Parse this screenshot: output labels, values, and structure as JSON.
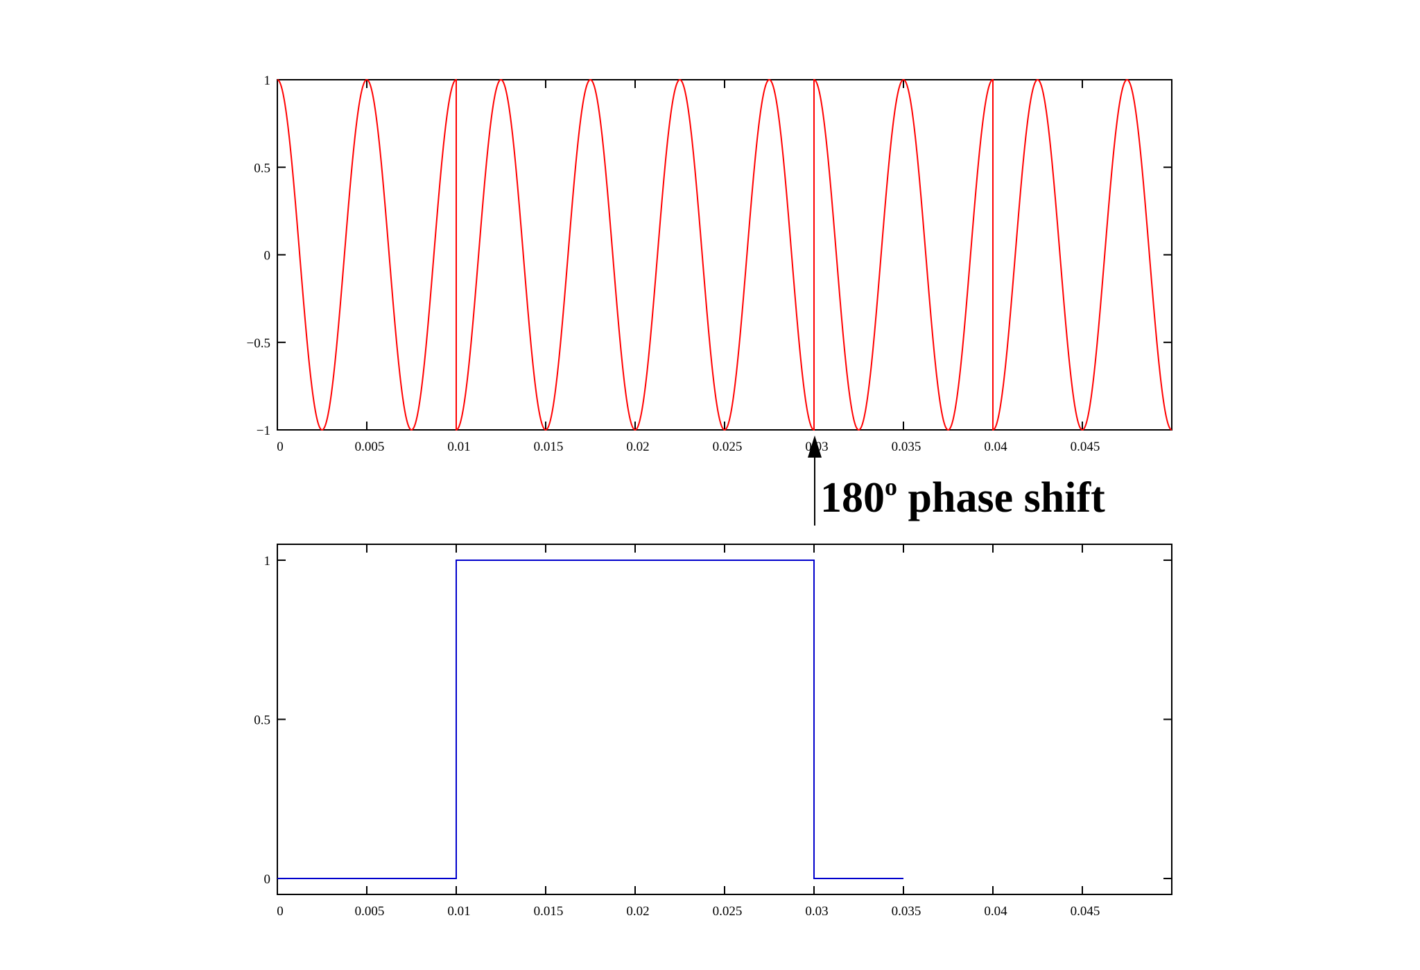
{
  "chart_data": [
    {
      "type": "line",
      "function": "cos(2*pi*200*t + phi(t))",
      "x_range": [
        0,
        0.05
      ],
      "ylim": [
        -1,
        1
      ],
      "color": "#ff0000",
      "x_ticks": [
        0,
        0.005,
        0.01,
        0.015,
        0.02,
        0.025,
        0.03,
        0.035,
        0.04,
        0.045
      ],
      "x_tick_labels": [
        "0",
        "0.005",
        "0.01",
        "0.015",
        "0.02",
        "0.025",
        "0.03",
        "0.035",
        "0.04",
        "0.045"
      ],
      "y_ticks": [
        -1,
        -0.5,
        0,
        0.5,
        1
      ],
      "y_tick_labels": [
        "−1",
        "−0.5",
        "0",
        "0.5",
        "1"
      ],
      "segments": [
        {
          "x_start": 0,
          "x_end": 0.01,
          "phase": "0"
        },
        {
          "x_start": 0.01,
          "x_end": 0.03,
          "phase": "180"
        },
        {
          "x_start": 0.03,
          "x_end": 0.04,
          "phase": "0"
        },
        {
          "x_start": 0.04,
          "x_end": 0.05,
          "phase": "180"
        }
      ],
      "grid": false
    },
    {
      "type": "line",
      "x": [
        0,
        0.01,
        0.01,
        0.03,
        0.03,
        0.035
      ],
      "y": [
        0,
        0,
        1,
        1,
        0,
        0
      ],
      "color": "#0000cc",
      "x_range": [
        0,
        0.05
      ],
      "ylim": [
        -0.05,
        1.05
      ],
      "x_ticks": [
        0,
        0.005,
        0.01,
        0.015,
        0.02,
        0.025,
        0.03,
        0.035,
        0.04,
        0.045
      ],
      "x_tick_labels": [
        "0",
        "0.005",
        "0.01",
        "0.015",
        "0.02",
        "0.025",
        "0.03",
        "0.035",
        "0.04",
        "0.045"
      ],
      "y_ticks": [
        0,
        0.5,
        1
      ],
      "y_tick_labels": [
        "0",
        "0.5",
        "1"
      ],
      "grid": false
    }
  ],
  "annotation": {
    "text_main": "180",
    "text_sup": "o",
    "text_rest": " phase shift",
    "x_value": 0.03
  }
}
